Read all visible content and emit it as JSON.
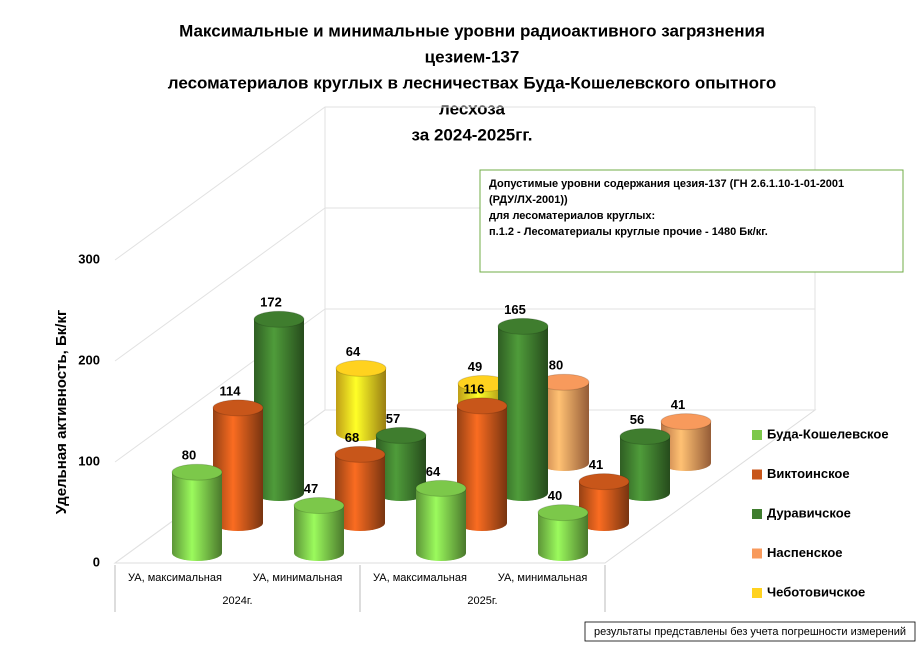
{
  "chart_data": {
    "type": "bar3d",
    "title": [
      "Максимальные и минимальные уровни радиоактивного загрязнения",
      "цезием-137",
      "лесоматериалов круглых в лесничествах Буда-Кошелевского опытного",
      "лесхоза",
      "за 2024-2025гг."
    ],
    "y_label": "Удельная активность, Бк/кг",
    "categories": [
      "УА, максимальная",
      "УА, минимальная",
      "УА, максимальная",
      "УА, минимальная"
    ],
    "groups": [
      "2024г.",
      "2025г."
    ],
    "series": [
      {
        "name": "Буда-Кошелевское",
        "color": "#7cc84a",
        "values": [
          80,
          47,
          64,
          40
        ]
      },
      {
        "name": "Виктоинское",
        "color": "#c8561a",
        "values": [
          114,
          68,
          116,
          41
        ]
      },
      {
        "name": "Дуравичское",
        "color": "#3f7d2e",
        "values": [
          172,
          57,
          165,
          56
        ]
      },
      {
        "name": "Наспенское",
        "color": "#f89a5c",
        "values": [
          null,
          null,
          80,
          41
        ]
      },
      {
        "name": "Чеботовичское",
        "color": "#ffd21f",
        "values": [
          64,
          49,
          null,
          null
        ]
      }
    ],
    "ylim": [
      0,
      300
    ],
    "yticks": [
      0,
      100,
      200,
      300
    ],
    "grid": true,
    "annotations": [
      "Допустимые уровни содержания цезия-137 (ГН 2.6.1.10-1-01-2001",
      "(РДУ/ЛХ-2001))",
      "для лесоматериалов круглых:",
      "п.1.2 - Лесоматериалы круглые прочие - 1480 Бк/кг."
    ],
    "footnote": "результаты представлены без учета погрешности измерений"
  }
}
